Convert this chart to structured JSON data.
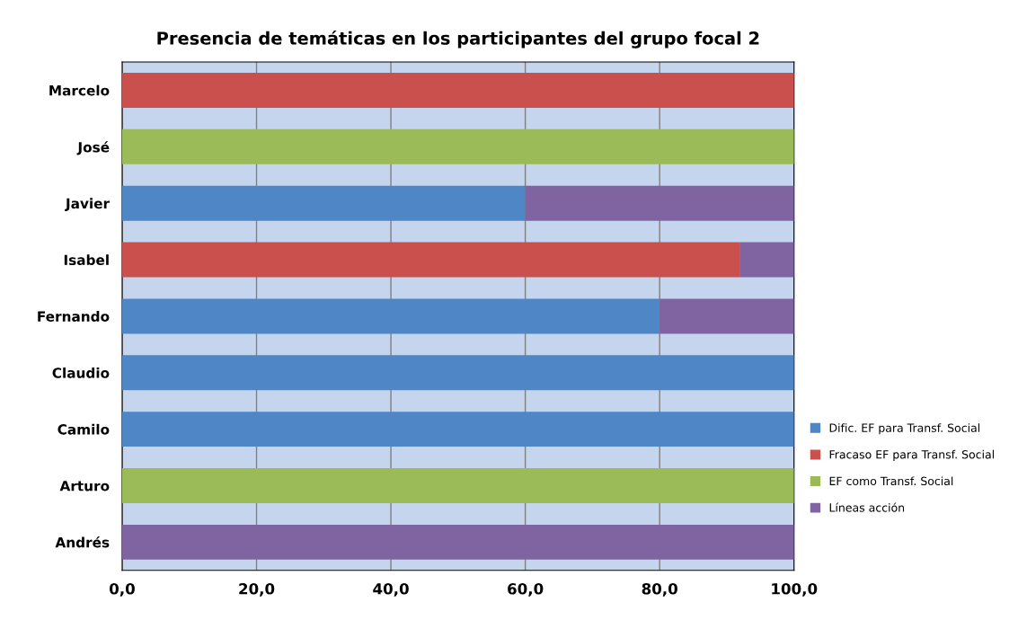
{
  "chart_data": {
    "type": "bar",
    "orientation": "horizontal",
    "stacked": true,
    "title": "Presencia de temáticas en los participantes del grupo focal 2",
    "categories": [
      "Marcelo",
      "José",
      "Javier",
      "Isabel",
      "Fernando",
      "Claudio",
      "Camilo",
      "Arturo",
      "Andrés"
    ],
    "series": [
      {
        "name": "Dific. EF para Transf. Social",
        "color": "#4f86c6",
        "values": [
          0,
          0,
          60,
          0,
          80,
          100,
          100,
          0,
          0
        ]
      },
      {
        "name": "Fracaso EF para Transf. Social",
        "color": "#c9504d",
        "values": [
          100,
          0,
          0,
          92,
          0,
          0,
          0,
          0,
          0
        ]
      },
      {
        "name": "EF como Transf. Social",
        "color": "#9bbb59",
        "values": [
          0,
          100,
          0,
          0,
          0,
          0,
          0,
          100,
          0
        ]
      },
      {
        "name": "Líneas acción",
        "color": "#8064a2",
        "values": [
          0,
          0,
          40,
          8,
          20,
          0,
          0,
          0,
          100
        ]
      }
    ],
    "xlim": [
      0,
      100
    ],
    "xticks": [
      {
        "value": 0,
        "label": "0,0"
      },
      {
        "value": 20,
        "label": "20,0"
      },
      {
        "value": 40,
        "label": "40,0"
      },
      {
        "value": 60,
        "label": "60,0"
      },
      {
        "value": 80,
        "label": "80,0"
      },
      {
        "value": 100,
        "label": "100,0"
      }
    ],
    "grid": "x",
    "legend": "right"
  }
}
